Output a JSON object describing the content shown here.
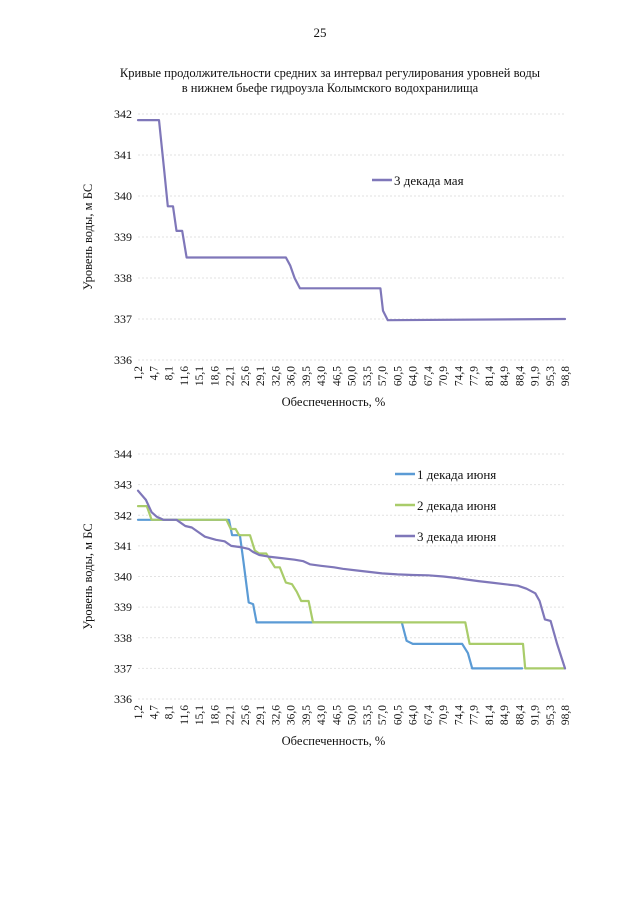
{
  "page_number": "25",
  "title_line1": "Кривые продолжительности средних за интервал регулирования уровней воды",
  "title_line2": "в нижнем бьефе гидроузла Колымского водохранилища",
  "chart_data": [
    {
      "type": "line",
      "xlabel": "Обеспеченность, %",
      "ylabel": "Уровень воды, м БС",
      "ylim": [
        336,
        342
      ],
      "yticks": [
        "336",
        "337",
        "338",
        "339",
        "340",
        "341",
        "342"
      ],
      "categories": [
        "1,2",
        "4,7",
        "8,1",
        "11,6",
        "15,1",
        "18,6",
        "22,1",
        "25,6",
        "29,1",
        "32,6",
        "36,0",
        "39,5",
        "43,0",
        "46,5",
        "50,0",
        "53,5",
        "57,0",
        "60,5",
        "64,0",
        "67,4",
        "70,9",
        "74,4",
        "77,9",
        "81,4",
        "84,9",
        "88,4",
        "91,9",
        "95,3",
        "98,8"
      ],
      "legend_position": "top-right",
      "series": [
        {
          "name": "3 декада мая",
          "color": "#7f77b9",
          "points": [
            [
              1.2,
              341.85
            ],
            [
              6.0,
              341.85
            ],
            [
              7.2,
              340.6
            ],
            [
              8.0,
              339.75
            ],
            [
              9.2,
              339.75
            ],
            [
              10.0,
              339.15
            ],
            [
              11.3,
              339.15
            ],
            [
              12.3,
              338.5
            ],
            [
              35.0,
              338.5
            ],
            [
              36.0,
              338.3
            ],
            [
              37.0,
              338.0
            ],
            [
              38.2,
              337.75
            ],
            [
              56.6,
              337.75
            ],
            [
              57.2,
              337.2
            ],
            [
              58.3,
              336.97
            ],
            [
              98.8,
              337.0
            ]
          ]
        }
      ]
    },
    {
      "type": "line",
      "xlabel": "Обеспеченность, %",
      "ylabel": "Уровень воды, м БС",
      "ylim": [
        336,
        344
      ],
      "yticks": [
        "336",
        "337",
        "338",
        "339",
        "340",
        "341",
        "342",
        "343",
        "344"
      ],
      "categories": [
        "1,2",
        "4,7",
        "8,1",
        "11,6",
        "15,1",
        "18,6",
        "22,1",
        "25,6",
        "29,1",
        "32,6",
        "36,0",
        "39,5",
        "43,0",
        "46,5",
        "50,0",
        "53,5",
        "57,0",
        "60,5",
        "64,0",
        "67,4",
        "70,9",
        "74,4",
        "77,9",
        "81,4",
        "84,9",
        "88,4",
        "91,9",
        "95,3",
        "98,8"
      ],
      "legend_position": "top-right",
      "series": [
        {
          "name": "1 декада июня",
          "color": "#5b9bd5",
          "points": [
            [
              1.2,
              341.85
            ],
            [
              22.0,
              341.85
            ],
            [
              22.7,
              341.35
            ],
            [
              24.5,
              341.35
            ],
            [
              25.3,
              340.5
            ],
            [
              26.5,
              339.15
            ],
            [
              27.5,
              339.1
            ],
            [
              28.3,
              338.5
            ],
            [
              61.5,
              338.5
            ],
            [
              62.6,
              337.9
            ],
            [
              64.0,
              337.8
            ],
            [
              73.8,
              337.8
            ],
            [
              75.3,
              337.8
            ],
            [
              76.6,
              337.5
            ],
            [
              77.6,
              337.0
            ],
            [
              89.0,
              337.0
            ]
          ]
        },
        {
          "name": "2 декада июня",
          "color": "#a9cc6a",
          "points": [
            [
              1.2,
              342.3
            ],
            [
              3.2,
              342.3
            ],
            [
              4.3,
              341.85
            ],
            [
              21.4,
              341.85
            ],
            [
              22.4,
              341.55
            ],
            [
              23.5,
              341.55
            ],
            [
              24.3,
              341.35
            ],
            [
              26.8,
              341.35
            ],
            [
              27.9,
              340.85
            ],
            [
              28.9,
              340.75
            ],
            [
              30.5,
              340.75
            ],
            [
              32.5,
              340.3
            ],
            [
              33.6,
              340.3
            ],
            [
              35.0,
              339.8
            ],
            [
              36.4,
              339.75
            ],
            [
              37.5,
              339.5
            ],
            [
              38.5,
              339.2
            ],
            [
              40.2,
              339.2
            ],
            [
              41.2,
              338.5
            ],
            [
              76.0,
              338.5
            ],
            [
              77.0,
              337.8
            ],
            [
              89.2,
              337.8
            ],
            [
              89.7,
              337.0
            ],
            [
              98.8,
              337.0
            ]
          ]
        },
        {
          "name": "3 декада июня",
          "color": "#7f77b9",
          "points": [
            [
              1.2,
              342.8
            ],
            [
              3.0,
              342.5
            ],
            [
              4.3,
              342.1
            ],
            [
              5.5,
              341.95
            ],
            [
              7.0,
              341.85
            ],
            [
              10.0,
              341.85
            ],
            [
              12.0,
              341.65
            ],
            [
              13.5,
              341.6
            ],
            [
              15.0,
              341.45
            ],
            [
              16.5,
              341.3
            ],
            [
              19.0,
              341.2
            ],
            [
              21.0,
              341.15
            ],
            [
              22.5,
              341.0
            ],
            [
              25.0,
              340.95
            ],
            [
              26.5,
              340.9
            ],
            [
              27.5,
              340.8
            ],
            [
              29.0,
              340.7
            ],
            [
              31.0,
              340.65
            ],
            [
              34.0,
              340.6
            ],
            [
              37.0,
              340.55
            ],
            [
              39.0,
              340.5
            ],
            [
              40.5,
              340.4
            ],
            [
              43.0,
              340.35
            ],
            [
              46.0,
              340.3
            ],
            [
              48.0,
              340.25
            ],
            [
              51.0,
              340.2
            ],
            [
              54.0,
              340.15
            ],
            [
              57.0,
              340.1
            ],
            [
              60.5,
              340.07
            ],
            [
              64.0,
              340.05
            ],
            [
              67.5,
              340.04
            ],
            [
              71.0,
              340.0
            ],
            [
              74.0,
              339.95
            ],
            [
              76.5,
              339.9
            ],
            [
              79.0,
              339.85
            ],
            [
              82.0,
              339.8
            ],
            [
              85.0,
              339.75
            ],
            [
              88.0,
              339.7
            ],
            [
              90.0,
              339.6
            ],
            [
              92.0,
              339.45
            ],
            [
              93.0,
              339.2
            ],
            [
              94.2,
              338.6
            ],
            [
              95.5,
              338.55
            ],
            [
              97.0,
              337.8
            ],
            [
              98.8,
              337.0
            ]
          ]
        }
      ]
    }
  ]
}
